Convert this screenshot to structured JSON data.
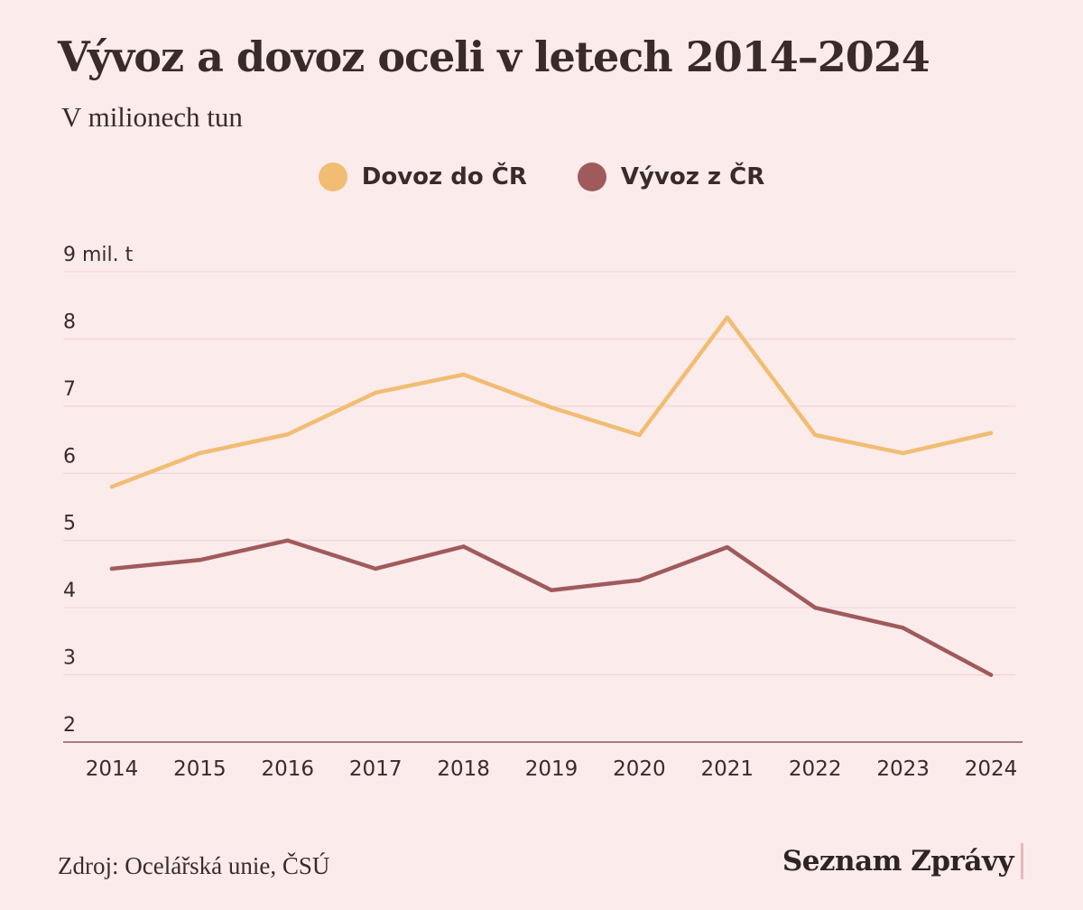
{
  "header": {
    "title": "Vývoz a dovoz oceli v letech 2014–2024",
    "subtitle": "V milionech tun"
  },
  "footer": {
    "source": "Zdroj: Ocelářská unie, ČSÚ",
    "brand": "Seznam Zprávy"
  },
  "colors": {
    "background": "#fcebeb",
    "import": "#f0bd73",
    "export": "#9f5a5c",
    "grid": "#f0cfcf",
    "axis": "#8a5a5a",
    "text": "#3a2b2b"
  },
  "chart_data": {
    "type": "line",
    "title": "Vývoz a dovoz oceli v letech 2014–2024",
    "subtitle": "V milionech tun",
    "x": [
      "2014",
      "2015",
      "2016",
      "2017",
      "2018",
      "2019",
      "2020",
      "2021",
      "2022",
      "2023",
      "2024"
    ],
    "y_ticks": [
      "2",
      "3",
      "4",
      "5",
      "6",
      "7",
      "8",
      "9 mil. t"
    ],
    "ylim": [
      2,
      9
    ],
    "grid": true,
    "legend_position": "top-center",
    "series": [
      {
        "name": "Dovoz do ČR",
        "color": "#f0bd73",
        "values": [
          5.8,
          6.3,
          6.58,
          7.2,
          7.47,
          6.98,
          6.57,
          8.32,
          6.57,
          6.3,
          6.6
        ]
      },
      {
        "name": "Vývoz z ČR",
        "color": "#9f5a5c",
        "values": [
          4.58,
          4.71,
          5.0,
          4.58,
          4.91,
          4.26,
          4.41,
          4.9,
          4.0,
          3.7,
          3.0
        ]
      }
    ]
  }
}
